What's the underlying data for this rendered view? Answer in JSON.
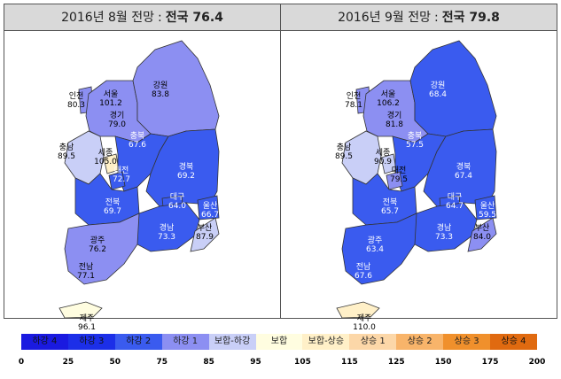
{
  "left": {
    "title_prefix": "2016년 8월 전망",
    "title_sep": ":",
    "title_main": "전국 76.4",
    "regions": [
      {
        "name": "인천",
        "value": "80.3"
      },
      {
        "name": "서울",
        "value": "101.2"
      },
      {
        "name": "경기",
        "value": "79.0"
      },
      {
        "name": "강원",
        "value": "83.8"
      },
      {
        "name": "충남",
        "value": "89.5"
      },
      {
        "name": "세종",
        "value": "105.0"
      },
      {
        "name": "충북",
        "value": "67.6"
      },
      {
        "name": "대전",
        "value": "72.7"
      },
      {
        "name": "경북",
        "value": "69.2"
      },
      {
        "name": "대구",
        "value": "64.0"
      },
      {
        "name": "울산",
        "value": "66.7"
      },
      {
        "name": "전북",
        "value": "69.7"
      },
      {
        "name": "경남",
        "value": "73.3"
      },
      {
        "name": "부산",
        "value": "87.9"
      },
      {
        "name": "광주",
        "value": "76.2"
      },
      {
        "name": "전남",
        "value": "77.1"
      },
      {
        "name": "제주",
        "value": "96.1"
      }
    ]
  },
  "right": {
    "title_prefix": "2016년 9월 전망",
    "title_sep": ":",
    "title_main": "전국 79.8",
    "regions": [
      {
        "name": "인천",
        "value": "78.1"
      },
      {
        "name": "서울",
        "value": "106.2"
      },
      {
        "name": "경기",
        "value": "81.8"
      },
      {
        "name": "강원",
        "value": "68.4"
      },
      {
        "name": "충남",
        "value": "89.5"
      },
      {
        "name": "세종",
        "value": "90.9"
      },
      {
        "name": "충북",
        "value": "57.5"
      },
      {
        "name": "대전",
        "value": "79.5"
      },
      {
        "name": "경북",
        "value": "67.4"
      },
      {
        "name": "대구",
        "value": "64.7"
      },
      {
        "name": "울산",
        "value": "59.5"
      },
      {
        "name": "전북",
        "value": "65.7"
      },
      {
        "name": "경남",
        "value": "73.3"
      },
      {
        "name": "부산",
        "value": "84.0"
      },
      {
        "name": "광주",
        "value": "63.4"
      },
      {
        "name": "전남",
        "value": "67.6"
      },
      {
        "name": "제주",
        "value": "110.0"
      }
    ]
  },
  "legend": {
    "labels": [
      "하강 4",
      "하강 3",
      "하강 2",
      "하강 1",
      "보합-하강",
      "보합",
      "보합-상승",
      "상승 1",
      "상승 2",
      "상승 3",
      "상승 4"
    ],
    "colors": [
      "#1a1ae0",
      "#1c2fe8",
      "#3a5bef",
      "#8c8ff2",
      "#c9cff7",
      "#fffde0",
      "#fff0c8",
      "#fcd7a8",
      "#f8b46a",
      "#f0902c",
      "#e06a10"
    ],
    "ticks": [
      "0",
      "25",
      "50",
      "75",
      "85",
      "95",
      "105",
      "115",
      "125",
      "150",
      "175",
      "200"
    ]
  }
}
